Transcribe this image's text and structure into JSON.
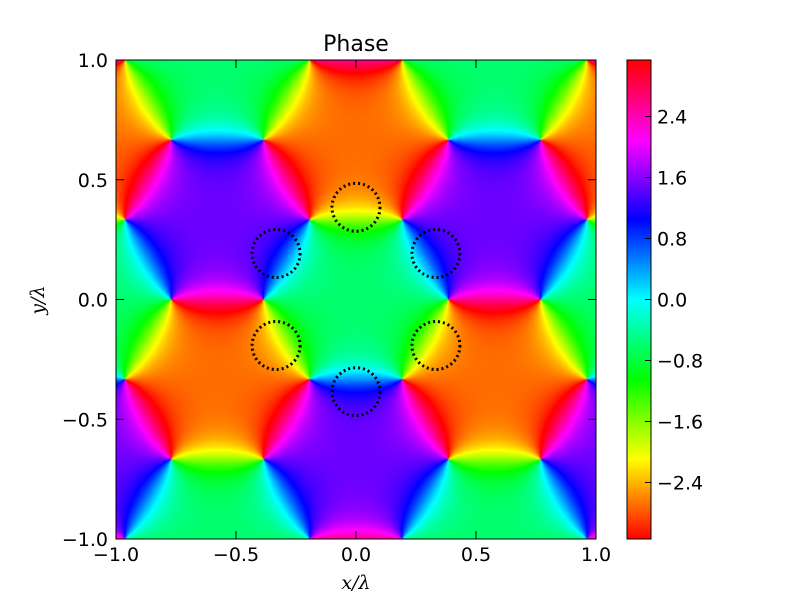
{
  "chart_data": {
    "type": "heatmap",
    "title": "Phase",
    "xlabel": "x/λ",
    "ylabel": "y/λ",
    "xlim": [
      -1.0,
      1.0
    ],
    "ylim": [
      -1.0,
      1.0
    ],
    "xticks": [
      -1.0,
      -0.5,
      0.0,
      0.5,
      1.0
    ],
    "yticks": [
      -1.0,
      -0.5,
      0.0,
      0.5,
      1.0
    ],
    "xtick_labels": [
      "−1.0",
      "−0.5",
      "0.0",
      "0.5",
      "1.0"
    ],
    "ytick_labels": [
      "−1.0",
      "−0.5",
      "0.0",
      "0.5",
      "1.0"
    ],
    "colorbar": {
      "vmin": -3.1416,
      "vmax": 3.1416,
      "colormap": "hsv",
      "ticks": [
        -2.4,
        -1.6,
        -0.8,
        0.0,
        0.8,
        1.6,
        2.4
      ],
      "tick_labels": [
        "−2.4",
        "−1.6",
        "−0.8",
        "0.0",
        "0.8",
        "1.6",
        "2.4"
      ]
    },
    "field": {
      "description_of_pattern": "three-plane-wave interference phase",
      "wave_angles_deg": [
        90,
        210,
        330
      ],
      "k_magnitude_per_lambda": 6.2832,
      "phase_offset_rad": -0.6
    },
    "annotations": {
      "style": "dotted black circles",
      "radius": 0.1,
      "centers": [
        {
          "x": 0.0,
          "y": 0.385
        },
        {
          "x": -0.333,
          "y": 0.192
        },
        {
          "x": 0.333,
          "y": 0.192
        },
        {
          "x": -0.333,
          "y": -0.192
        },
        {
          "x": 0.333,
          "y": -0.192
        },
        {
          "x": 0.0,
          "y": -0.385
        }
      ]
    },
    "grid": false
  }
}
